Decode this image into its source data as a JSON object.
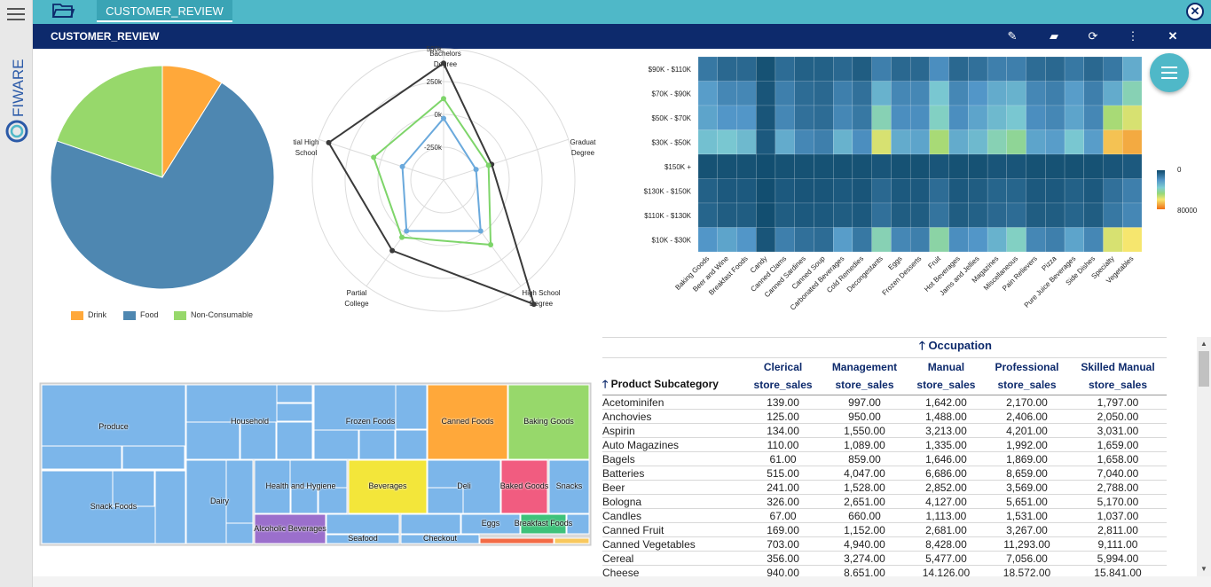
{
  "tabs": {
    "active": "CUSTOMER_REVIEW"
  },
  "title": "CUSTOMER_REVIEW",
  "brand": "FIWARE",
  "toolbar": {
    "icons": [
      "edit-icon",
      "book-icon",
      "refresh-icon",
      "more-vertical-icon",
      "close-icon"
    ]
  },
  "pie": {
    "chart_data": {
      "type": "pie",
      "slices": [
        {
          "name": "Drink",
          "value": 8.9,
          "color": "#ffa83a"
        },
        {
          "name": "Food",
          "value": 71.4,
          "color": "#4e87b1"
        },
        {
          "name": "Non-Consumable",
          "value": 19.7,
          "color": "#97d86b"
        }
      ],
      "legend": "bottom"
    }
  },
  "radar": {
    "chart_data": {
      "type": "radar",
      "axes": [
        "Bachelors Degree",
        "Graduate Degree",
        "High School Degree",
        "Partial College",
        "Partial High School"
      ],
      "axis_labels": [
        [
          "Bachelors",
          "Degree"
        ],
        [
          "Graduat",
          "Degree"
        ],
        [
          "High School",
          "Degree"
        ],
        [
          "Partial",
          "College"
        ],
        [
          "tial High",
          "School"
        ]
      ],
      "scale_labels": [
        "500k",
        "250k",
        "0k",
        "-250k"
      ],
      "range": [
        -500000,
        500000
      ],
      "series": [
        {
          "color": "#3a3a3a",
          "values": [
            390000,
            -115000,
            670000,
            165000,
            420000
          ]
        },
        {
          "color": "#7ed56a",
          "values": [
            120000,
            -140000,
            110000,
            40000,
            60000
          ]
        },
        {
          "color": "#6aa9dc",
          "values": [
            -30000,
            -240000,
            -20000,
            -20000,
            -170000
          ]
        }
      ]
    }
  },
  "heatmap": {
    "chart_data": {
      "type": "heatmap",
      "rows": [
        "$90K - $110K",
        "$70K - $90K",
        "$50K - $70K",
        "$30K - $50K",
        "$150K +",
        "$130K - $150K",
        "$110K - $130K",
        "$10K - $30K"
      ],
      "cols": [
        "Baking Goods",
        "Beer and Wine",
        "Breakfast Foods",
        "Candy",
        "Canned Clams",
        "Canned Sardines",
        "Canned Soup",
        "Carbonated Beverages",
        "Cold Remedies",
        "Decongestants",
        "Eggs",
        "Frozen Desserts",
        "Fruit",
        "Hot Beverages",
        "Jams and Jellies",
        "Magazines",
        "Miscellaneous",
        "Pain Relievers",
        "Pizza",
        "Pure Juice Beverages",
        "Side Dishes",
        "Specialty",
        "Vegetables"
      ],
      "color_scale": {
        "min": 0,
        "max": 80000,
        "min_label": "0",
        "max_label": "80000"
      },
      "values": [
        [
          12000,
          8000,
          8000,
          2000,
          9000,
          6000,
          6000,
          8000,
          5000,
          14000,
          8000,
          8000,
          18000,
          8000,
          10000,
          14000,
          14000,
          9000,
          8000,
          12000,
          8000,
          12000,
          26000
        ],
        [
          22000,
          16000,
          16000,
          3000,
          14000,
          9000,
          8000,
          14000,
          10000,
          28000,
          16000,
          16000,
          34000,
          16000,
          20000,
          26000,
          28000,
          16000,
          14000,
          22000,
          14000,
          26000,
          40000
        ],
        [
          24000,
          20000,
          20000,
          3000,
          16000,
          10000,
          9000,
          16000,
          12000,
          40000,
          18000,
          18000,
          38000,
          18000,
          24000,
          30000,
          34000,
          18000,
          16000,
          24000,
          16000,
          50000,
          56000
        ],
        [
          32000,
          34000,
          30000,
          4000,
          26000,
          16000,
          14000,
          28000,
          18000,
          56000,
          26000,
          24000,
          50000,
          26000,
          30000,
          40000,
          44000,
          24000,
          22000,
          34000,
          22000,
          66000,
          70000
        ],
        [
          2000,
          2000,
          2000,
          1000,
          2000,
          2000,
          2000,
          2000,
          2000,
          3000,
          2000,
          2000,
          3000,
          2000,
          2000,
          3000,
          3000,
          2000,
          2000,
          2000,
          2000,
          3000,
          4000
        ],
        [
          6000,
          4000,
          4000,
          1000,
          4000,
          3000,
          3000,
          4000,
          3000,
          8000,
          4000,
          4000,
          9000,
          4000,
          5000,
          7000,
          7000,
          4000,
          4000,
          6000,
          4000,
          10000,
          14000
        ],
        [
          7000,
          5000,
          5000,
          1000,
          5000,
          4000,
          4000,
          5000,
          4000,
          10000,
          5000,
          5000,
          11000,
          5000,
          6000,
          8000,
          9000,
          5000,
          5000,
          7000,
          5000,
          12000,
          16000
        ],
        [
          20000,
          24000,
          20000,
          3000,
          14000,
          10000,
          9000,
          22000,
          12000,
          40000,
          16000,
          14000,
          42000,
          18000,
          20000,
          28000,
          38000,
          16000,
          14000,
          24000,
          16000,
          56000,
          60000
        ]
      ]
    }
  },
  "treemap": {
    "chart_data": {
      "type": "treemap",
      "groups": [
        {
          "name": "Produce",
          "color": "#7cb6ea",
          "value": 300
        },
        {
          "name": "Snack Foods",
          "color": "#7cb6ea",
          "value": 260
        },
        {
          "name": "Household",
          "color": "#7cb6ea",
          "value": 230
        },
        {
          "name": "Dairy",
          "color": "#7cb6ea",
          "value": 110
        },
        {
          "name": "Frozen Foods",
          "color": "#7cb6ea",
          "value": 170
        },
        {
          "name": "Health and Hygiene",
          "color": "#7cb6ea",
          "value": 130
        },
        {
          "name": "Alcoholic Beverages",
          "color": "#9b6fcc",
          "value": 60
        },
        {
          "name": "Seafood",
          "color": "#7cb6ea",
          "value": 15
        },
        {
          "name": "Beverages",
          "color": "#f3e63a",
          "value": 85
        },
        {
          "name": "Canned Foods",
          "color": "#ffa83a",
          "value": 95
        },
        {
          "name": "Deli",
          "color": "#7cb6ea",
          "value": 85
        },
        {
          "name": "Checkout",
          "color": "#7cb6ea",
          "value": 15
        },
        {
          "name": "Baking Goods",
          "color": "#97d86b",
          "value": 90
        },
        {
          "name": "Baked Goods",
          "color": "#f15c80",
          "value": 50
        },
        {
          "name": "Snacks",
          "color": "#7cb6ea",
          "value": 45
        },
        {
          "name": "Eggs",
          "color": "#7cb6ea",
          "value": 20
        },
        {
          "name": "Breakfast Foods",
          "color": "#3ec27a",
          "value": 25
        }
      ]
    }
  },
  "pivot": {
    "column_dimension": "Occupation",
    "row_dimension": "Product Subcategory",
    "measure": "store_sales",
    "columns": [
      "Clerical",
      "Management",
      "Manual",
      "Professional",
      "Skilled Manual"
    ],
    "rows": [
      {
        "name": "Acetominifen",
        "values": [
          "139.00",
          "997.00",
          "1,642.00",
          "2,170.00",
          "1,797.00"
        ]
      },
      {
        "name": "Anchovies",
        "values": [
          "125.00",
          "950.00",
          "1,488.00",
          "2,406.00",
          "2,050.00"
        ]
      },
      {
        "name": "Aspirin",
        "values": [
          "134.00",
          "1,550.00",
          "3,213.00",
          "4,201.00",
          "3,031.00"
        ]
      },
      {
        "name": "Auto Magazines",
        "values": [
          "110.00",
          "1,089.00",
          "1,335.00",
          "1,992.00",
          "1,659.00"
        ]
      },
      {
        "name": "Bagels",
        "values": [
          "61.00",
          "859.00",
          "1,646.00",
          "1,869.00",
          "1,658.00"
        ]
      },
      {
        "name": "Batteries",
        "values": [
          "515.00",
          "4,047.00",
          "6,686.00",
          "8,659.00",
          "7,040.00"
        ]
      },
      {
        "name": "Beer",
        "values": [
          "241.00",
          "1,528.00",
          "2,852.00",
          "3,569.00",
          "2,788.00"
        ]
      },
      {
        "name": "Bologna",
        "values": [
          "326.00",
          "2,651.00",
          "4,127.00",
          "5,651.00",
          "5,170.00"
        ]
      },
      {
        "name": "Candles",
        "values": [
          "67.00",
          "660.00",
          "1,113.00",
          "1,531.00",
          "1,037.00"
        ]
      },
      {
        "name": "Canned Fruit",
        "values": [
          "169.00",
          "1,152.00",
          "2,681.00",
          "3,267.00",
          "2,811.00"
        ]
      },
      {
        "name": "Canned Vegetables",
        "values": [
          "703.00",
          "4,940.00",
          "8,428.00",
          "11,293.00",
          "9,111.00"
        ]
      },
      {
        "name": "Cereal",
        "values": [
          "356.00",
          "3,274.00",
          "5,477.00",
          "7,056.00",
          "5,994.00"
        ]
      },
      {
        "name": "Cheese",
        "values": [
          "940.00",
          "8,651.00",
          "14,126.00",
          "18,572.00",
          "15,841.00"
        ]
      }
    ]
  }
}
